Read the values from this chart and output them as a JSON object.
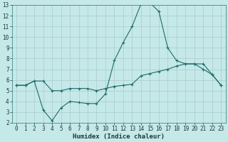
{
  "title": "",
  "xlabel": "Humidex (Indice chaleur)",
  "background_color": "#c5e8e8",
  "grid_color": "#aecfcf",
  "line_color": "#1e6b6b",
  "xlim": [
    -0.5,
    23.5
  ],
  "ylim": [
    2,
    13
  ],
  "xticks": [
    0,
    1,
    2,
    3,
    4,
    5,
    6,
    7,
    8,
    9,
    10,
    11,
    12,
    13,
    14,
    15,
    16,
    17,
    18,
    19,
    20,
    21,
    22,
    23
  ],
  "yticks": [
    2,
    3,
    4,
    5,
    6,
    7,
    8,
    9,
    10,
    11,
    12,
    13
  ],
  "line1_x": [
    0,
    1,
    2,
    3,
    4,
    5,
    6,
    7,
    8,
    9,
    10,
    11,
    12,
    13,
    14,
    15,
    16,
    17,
    18,
    19,
    20,
    21,
    22,
    23
  ],
  "line1_y": [
    5.5,
    5.5,
    5.9,
    5.9,
    5.0,
    5.0,
    5.2,
    5.2,
    5.2,
    5.0,
    5.2,
    5.4,
    5.5,
    5.6,
    6.4,
    6.6,
    6.8,
    7.0,
    7.3,
    7.5,
    7.5,
    7.5,
    6.5,
    5.5
  ],
  "line2_x": [
    0,
    1,
    2,
    3,
    4,
    5,
    6,
    7,
    8,
    9,
    10,
    11,
    12,
    13,
    14,
    15,
    16,
    17,
    18,
    19,
    20,
    21,
    22,
    23
  ],
  "line2_y": [
    5.5,
    5.5,
    5.9,
    3.2,
    2.2,
    3.4,
    4.0,
    3.9,
    3.8,
    3.8,
    4.7,
    7.8,
    9.5,
    11.0,
    13.1,
    13.2,
    12.4,
    9.0,
    7.8,
    7.5,
    7.5,
    7.0,
    6.5,
    5.5
  ],
  "fontsize_tick": 5.5,
  "fontsize_xlabel": 6.5
}
